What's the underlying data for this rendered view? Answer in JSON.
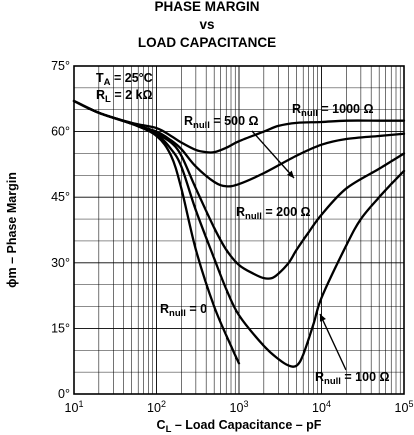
{
  "chart_data": {
    "type": "line",
    "title": [
      "PHASE MARGIN",
      "vs",
      "LOAD CAPACITANCE"
    ],
    "xlabel": {
      "main": "C",
      "sub": "L",
      "rest": " – Load Capacitance – pF"
    },
    "ylabel": "ϕm – Phase Margin",
    "x_scale": "log",
    "xlim": [
      10,
      100000
    ],
    "ylim": [
      0,
      75
    ],
    "grid": true,
    "x_ticks": [
      {
        "base": "10",
        "exp": "1"
      },
      {
        "base": "10",
        "exp": "2"
      },
      {
        "base": "10",
        "exp": "3"
      },
      {
        "base": "10",
        "exp": "4"
      },
      {
        "base": "10",
        "exp": "5"
      }
    ],
    "y_ticks": [
      "0°",
      "15°",
      "30°",
      "45°",
      "60°",
      "75°"
    ],
    "conditions": [
      {
        "main": "T",
        "sub": "A",
        "rest": " = 25°C"
      },
      {
        "main": "R",
        "sub": "L",
        "rest": " = 2 kΩ"
      }
    ],
    "series": [
      {
        "name": {
          "main": "R",
          "sub": "null",
          "rest": " = 0"
        },
        "points": [
          [
            10,
            67
          ],
          [
            20,
            64.3
          ],
          [
            50,
            61.8
          ],
          [
            100,
            59
          ],
          [
            150,
            54.5
          ],
          [
            200,
            47
          ],
          [
            300,
            33
          ],
          [
            500,
            20
          ],
          [
            800,
            11
          ],
          [
            1000,
            7
          ]
        ]
      },
      {
        "name": {
          "main": "R",
          "sub": "null",
          "rest": " = 100 Ω"
        },
        "points": [
          [
            10,
            67
          ],
          [
            20,
            64.3
          ],
          [
            50,
            61.8
          ],
          [
            100,
            59.3
          ],
          [
            150,
            56
          ],
          [
            200,
            52
          ],
          [
            300,
            42
          ],
          [
            500,
            31
          ],
          [
            700,
            24
          ],
          [
            1000,
            18
          ],
          [
            2000,
            11
          ],
          [
            3000,
            8
          ],
          [
            4000,
            6.5
          ],
          [
            5000,
            6.5
          ],
          [
            6000,
            9
          ],
          [
            8000,
            16
          ],
          [
            10000,
            22
          ],
          [
            20000,
            34
          ],
          [
            30000,
            40
          ],
          [
            50000,
            45
          ],
          [
            70000,
            48
          ],
          [
            100000,
            51
          ]
        ]
      },
      {
        "name": {
          "main": "R",
          "sub": "null",
          "rest": " = 200 Ω"
        },
        "points": [
          [
            10,
            67
          ],
          [
            20,
            64.3
          ],
          [
            50,
            61.8
          ],
          [
            100,
            59.5
          ],
          [
            150,
            57.5
          ],
          [
            200,
            54.5
          ],
          [
            300,
            47
          ],
          [
            500,
            38
          ],
          [
            700,
            33
          ],
          [
            1000,
            29.5
          ],
          [
            1500,
            27.5
          ],
          [
            2000,
            26.5
          ],
          [
            2500,
            26.5
          ],
          [
            3000,
            27.5
          ],
          [
            4000,
            30
          ],
          [
            5000,
            33
          ],
          [
            7000,
            37
          ],
          [
            10000,
            41
          ],
          [
            20000,
            47
          ],
          [
            50000,
            51.5
          ],
          [
            100000,
            55
          ]
        ]
      },
      {
        "name": {
          "main": "R",
          "sub": "null",
          "rest": " = 500 Ω"
        },
        "points": [
          [
            10,
            67
          ],
          [
            20,
            64.3
          ],
          [
            50,
            61.8
          ],
          [
            100,
            60
          ],
          [
            150,
            58
          ],
          [
            200,
            56
          ],
          [
            300,
            52
          ],
          [
            500,
            48.5
          ],
          [
            700,
            47.5
          ],
          [
            1000,
            48
          ],
          [
            2000,
            50.5
          ],
          [
            5000,
            54.5
          ],
          [
            10000,
            57
          ],
          [
            20000,
            58.3
          ],
          [
            50000,
            59
          ],
          [
            100000,
            59.5
          ]
        ]
      },
      {
        "name": {
          "main": "R",
          "sub": "null",
          "rest": " = 1000 Ω"
        },
        "points": [
          [
            10,
            67
          ],
          [
            20,
            64.3
          ],
          [
            50,
            62
          ],
          [
            100,
            60.8
          ],
          [
            150,
            59
          ],
          [
            200,
            57.5
          ],
          [
            300,
            55.8
          ],
          [
            400,
            55.3
          ],
          [
            500,
            55.3
          ],
          [
            700,
            56.3
          ],
          [
            1000,
            57.8
          ],
          [
            2000,
            60
          ],
          [
            3000,
            61.3
          ],
          [
            5000,
            62
          ],
          [
            10000,
            62.2
          ],
          [
            20000,
            62.5
          ],
          [
            50000,
            62.5
          ],
          [
            100000,
            62.5
          ]
        ]
      }
    ]
  }
}
